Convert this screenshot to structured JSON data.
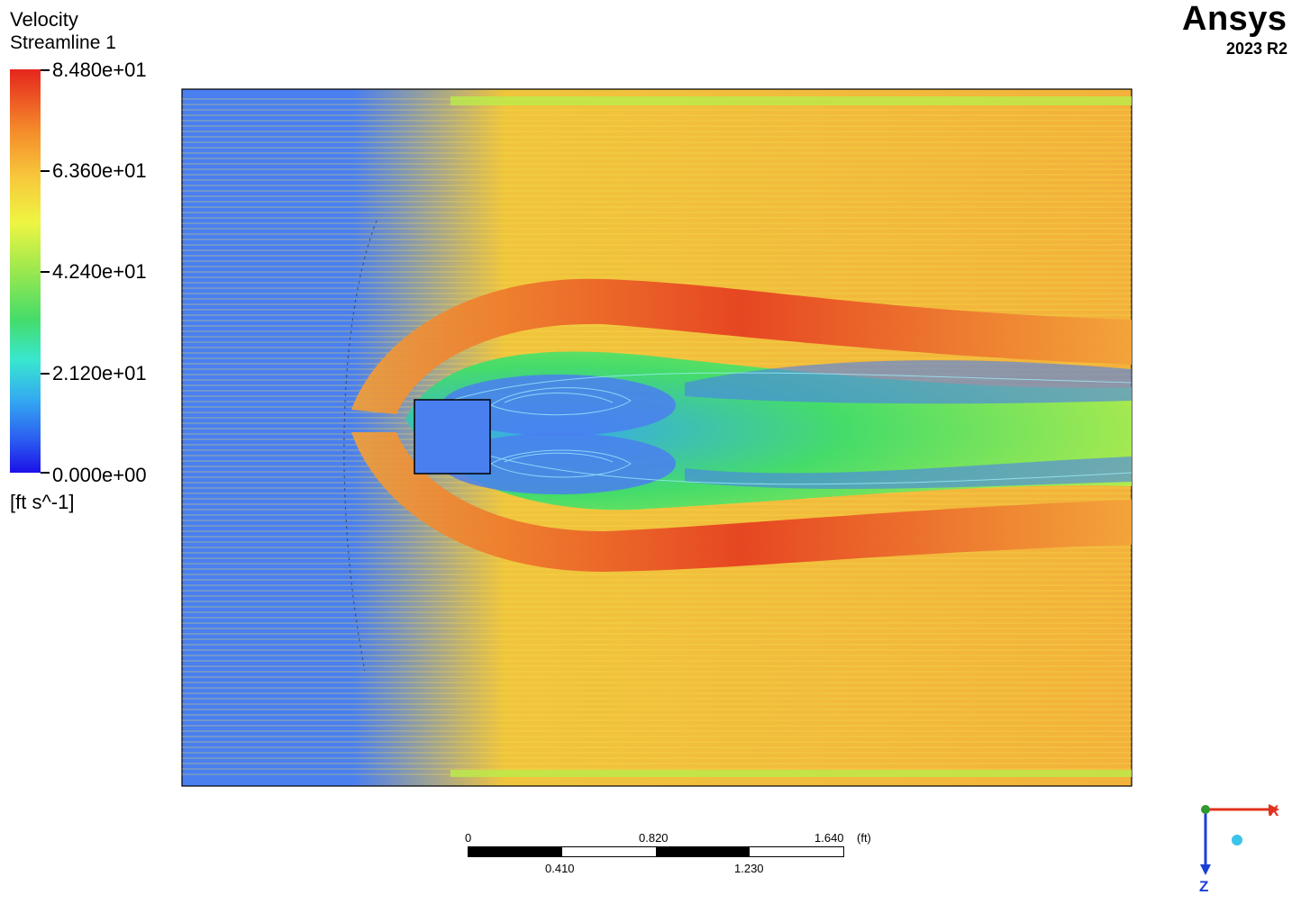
{
  "legend": {
    "title": "Velocity",
    "subtitle": "Streamline 1",
    "ticks": [
      "8.480e+01",
      "6.360e+01",
      "4.240e+01",
      "2.120e+01",
      "0.000e+00"
    ],
    "unit": "[ft s^-1]",
    "min": 0,
    "max": 84.8
  },
  "brand": {
    "name": "Ansys",
    "version": "2023 R2"
  },
  "scale": {
    "top_labels": [
      "0",
      "0.820",
      "1.640"
    ],
    "bottom_labels": [
      "0.410",
      "1.230"
    ],
    "unit": "(ft)"
  },
  "axes": {
    "x_label": "X",
    "z_label": "Z",
    "x_color": "#e0321e",
    "z_color": "#1b3fd6",
    "y_color": "#2e9a2e"
  },
  "colors": {
    "background_fluid": "#4a7ff0",
    "fast": "#e5261d",
    "free_stream": "#f3b23b",
    "slow": "#45dc6a"
  }
}
